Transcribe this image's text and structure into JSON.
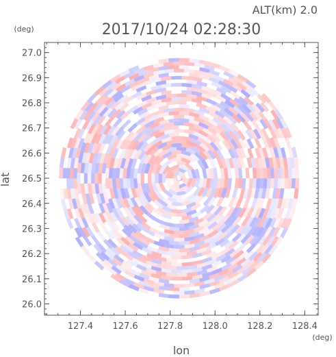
{
  "chart_data": {
    "type": "heatmap",
    "title": "2017/10/24 02:28:30",
    "subtitle": "ALT(km) 2.0",
    "xlabel": "lon",
    "ylabel": "lat",
    "x_unit": "(deg)",
    "y_unit": "(deg)",
    "xlim": [
      127.24,
      128.46
    ],
    "ylim": [
      25.955,
      27.04
    ],
    "x_ticks": [
      "127.4",
      "127.6",
      "127.8",
      "128.0",
      "128.2",
      "128.4"
    ],
    "x_tick_values": [
      127.4,
      127.6,
      127.8,
      128.0,
      128.2,
      128.4
    ],
    "y_ticks": [
      "26.0",
      "26.1",
      "26.2",
      "26.3",
      "26.4",
      "26.5",
      "26.6",
      "26.7",
      "26.8",
      "26.9",
      "27.0"
    ],
    "y_tick_values": [
      26.0,
      26.1,
      26.2,
      26.3,
      26.4,
      26.5,
      26.6,
      26.7,
      26.8,
      26.9,
      27.0
    ],
    "radar_center": [
      127.84,
      26.5
    ],
    "radar_radius_deg": 0.535,
    "grid": false,
    "colors": {
      "positive": "#ffb4b4",
      "negative": "#b4b4ff",
      "neutral": "#ffffff",
      "axis": "#555555"
    }
  }
}
